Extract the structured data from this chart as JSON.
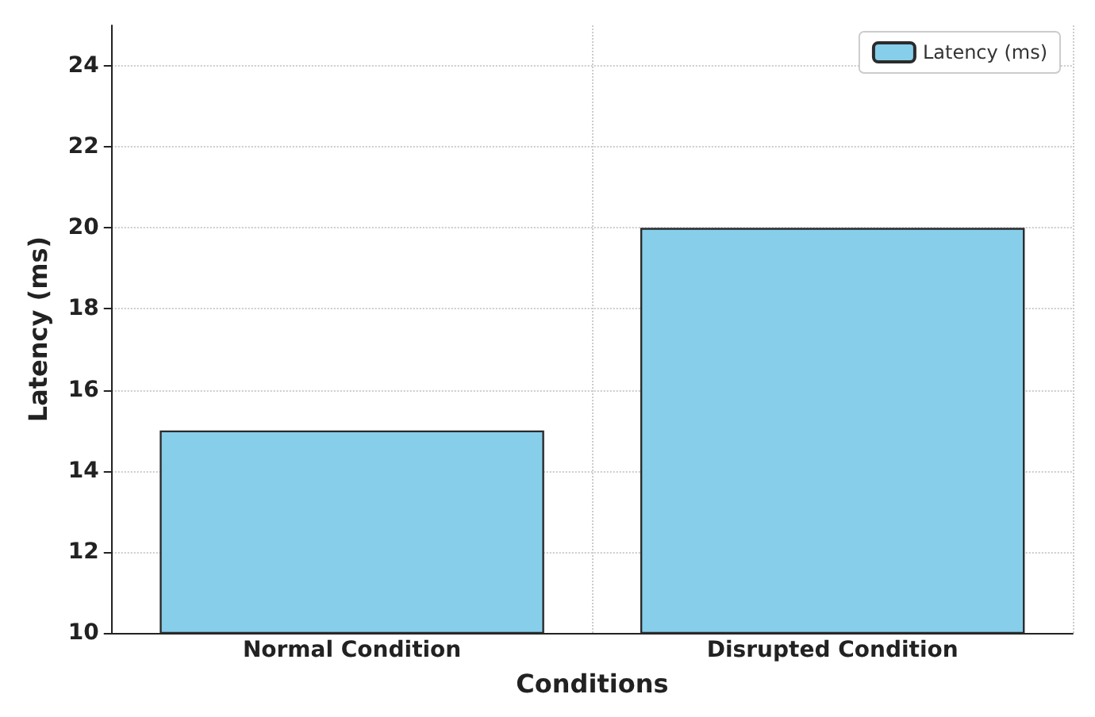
{
  "chart_data": {
    "type": "bar",
    "xlabel": "Conditions",
    "ylabel": "Latency (ms)",
    "categories": [
      "Normal Condition",
      "Disrupted Condition"
    ],
    "series": [
      {
        "name": "Latency (ms)",
        "color": "#87ceeb",
        "values": [
          15,
          20
        ]
      }
    ],
    "ylim": [
      10,
      25
    ],
    "yticks": [
      10,
      12,
      14,
      16,
      18,
      20,
      22,
      24
    ],
    "grid": true,
    "legend": "top right"
  }
}
